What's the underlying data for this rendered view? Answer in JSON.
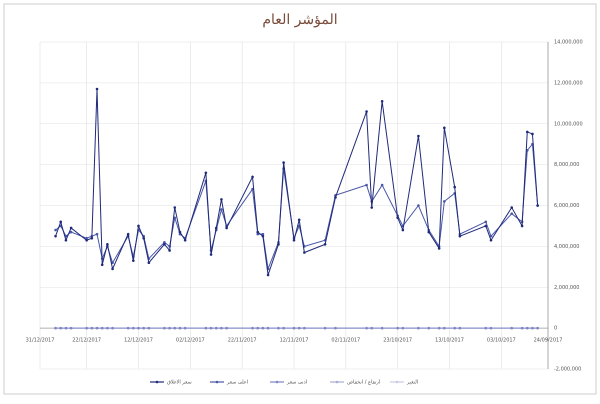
{
  "chart_data": {
    "type": "line",
    "title": "المؤشر العام",
    "x": [
      "28/12/2017",
      "27/12/2017",
      "26/12/2017",
      "25/12/2017",
      "22/12/2017",
      "21/12/2017",
      "20/12/2017",
      "19/12/2017",
      "18/12/2017",
      "17/12/2017",
      "14/12/2017",
      "13/12/2017",
      "12/12/2017",
      "11/12/2017",
      "10/12/2017",
      "07/12/2017",
      "06/12/2017",
      "05/12/2017",
      "04/12/2017",
      "03/12/2017",
      "29/11/2017",
      "28/11/2017",
      "27/11/2017",
      "26/11/2017",
      "25/11/2017",
      "20/11/2017",
      "19/11/2017",
      "18/11/2017",
      "17/11/2017",
      "15/11/2017",
      "14/11/2017",
      "12/11/2017",
      "11/11/2017",
      "10/11/2017",
      "06/11/2017",
      "04/11/2017",
      "29/10/2017",
      "28/10/2017",
      "26/10/2017",
      "23/10/2017",
      "22/10/2017",
      "19/10/2017",
      "17/10/2017",
      "15/10/2017",
      "14/10/2017",
      "12/10/2017",
      "11/10/2017",
      "06/10/2017",
      "05/10/2017",
      "01/10/2017",
      "29/09/2017",
      "28/09/2017",
      "27/09/2017",
      "26/09/2017"
    ],
    "series": [
      {
        "name": "سعر الاغلاق",
        "color": "#1f2a7a",
        "values": [
          4500000,
          5200000,
          4300000,
          4900000,
          4300000,
          4400000,
          11700000,
          3100000,
          4100000,
          2900000,
          4600000,
          3300000,
          5000000,
          4400000,
          3200000,
          4100000,
          3800000,
          5900000,
          4700000,
          4300000,
          7600000,
          3600000,
          4900000,
          6300000,
          4900000,
          7400000,
          4700000,
          4500000,
          2600000,
          4100000,
          8100000,
          4300000,
          5300000,
          3700000,
          4100000,
          6400000,
          10600000,
          5900000,
          11100000,
          5400000,
          4800000,
          9400000,
          4700000,
          3900000,
          9800000,
          6900000,
          4500000,
          5000000,
          4300000,
          5900000,
          5000000,
          9600000,
          9500000,
          6000000
        ]
      },
      {
        "name": "اعلى سعر",
        "color": "#4a57a8",
        "values": [
          4800000,
          5000000,
          4500000,
          4700000,
          4400000,
          4500000,
          4600000,
          3400000,
          4000000,
          3200000,
          4500000,
          3500000,
          4800000,
          4500000,
          3400000,
          4200000,
          4000000,
          5400000,
          4600000,
          4400000,
          7200000,
          3800000,
          4800000,
          5800000,
          5000000,
          6800000,
          4600000,
          4600000,
          2900000,
          4200000,
          7800000,
          4400000,
          5000000,
          4000000,
          4300000,
          6500000,
          7000000,
          6200000,
          7000000,
          5500000,
          5000000,
          6000000,
          4800000,
          4000000,
          6200000,
          6600000,
          4600000,
          5200000,
          4500000,
          5600000,
          5200000,
          8700000,
          9000000,
          6000000
        ]
      },
      {
        "name": "ادنى سعر",
        "color": "#7f86c4",
        "values": [
          0,
          0,
          0,
          0,
          0,
          0,
          0,
          0,
          0,
          0,
          0,
          0,
          0,
          0,
          0,
          0,
          0,
          0,
          0,
          0,
          0,
          0,
          0,
          0,
          0,
          0,
          0,
          0,
          0,
          0,
          0,
          0,
          0,
          0,
          0,
          0,
          0,
          0,
          0,
          0,
          0,
          0,
          0,
          0,
          0,
          0,
          0,
          0,
          0,
          0,
          0,
          0,
          0,
          0
        ]
      },
      {
        "name": "ارتفاع / انخفاض",
        "color": "#a9acd6",
        "values": [
          0,
          0,
          0,
          0,
          0,
          0,
          0,
          0,
          0,
          0,
          0,
          0,
          0,
          0,
          0,
          0,
          0,
          0,
          0,
          0,
          0,
          0,
          0,
          0,
          0,
          0,
          0,
          0,
          0,
          0,
          0,
          0,
          0,
          0,
          0,
          0,
          0,
          0,
          0,
          0,
          0,
          0,
          0,
          0,
          0,
          0,
          0,
          0,
          0,
          0,
          0,
          0,
          0,
          0
        ]
      },
      {
        "name": "التغير",
        "color": "#c9cbe6",
        "values": [
          0,
          0,
          0,
          0,
          0,
          0,
          0,
          0,
          0,
          0,
          0,
          0,
          0,
          0,
          0,
          0,
          0,
          0,
          0,
          0,
          0,
          0,
          0,
          0,
          0,
          0,
          0,
          0,
          0,
          0,
          0,
          0,
          0,
          0,
          0,
          0,
          0,
          0,
          0,
          0,
          0,
          0,
          0,
          0,
          0,
          0,
          0,
          0,
          0,
          0,
          0,
          0,
          0,
          0
        ]
      }
    ],
    "xlim": [
      "31/12/2017",
      "24/09/2017"
    ],
    "xticks": [
      "31/12/2017",
      "22/12/2017",
      "12/12/2017",
      "02/12/2017",
      "22/11/2017",
      "12/11/2017",
      "02/11/2017",
      "23/10/2017",
      "13/10/2017",
      "03/10/2017",
      "24/09/2017"
    ],
    "ylim": [
      -2000000,
      14000000
    ],
    "yticks": [
      {
        "value": -2000000,
        "label": "-2,000,000"
      },
      0,
      {
        "value": 2000000,
        "label": "2,000,000"
      },
      {
        "value": 4000000,
        "label": "4,000,000"
      },
      {
        "value": 6000000,
        "label": "6,000,000"
      },
      {
        "value": 8000000,
        "label": "8,000,000"
      },
      {
        "value": 10000000,
        "label": "10,000,000"
      },
      {
        "value": 12000000,
        "label": "12,000,000"
      },
      {
        "value": 14000000,
        "label": "14,000,000"
      }
    ],
    "grid": true,
    "legend": "bottom"
  }
}
